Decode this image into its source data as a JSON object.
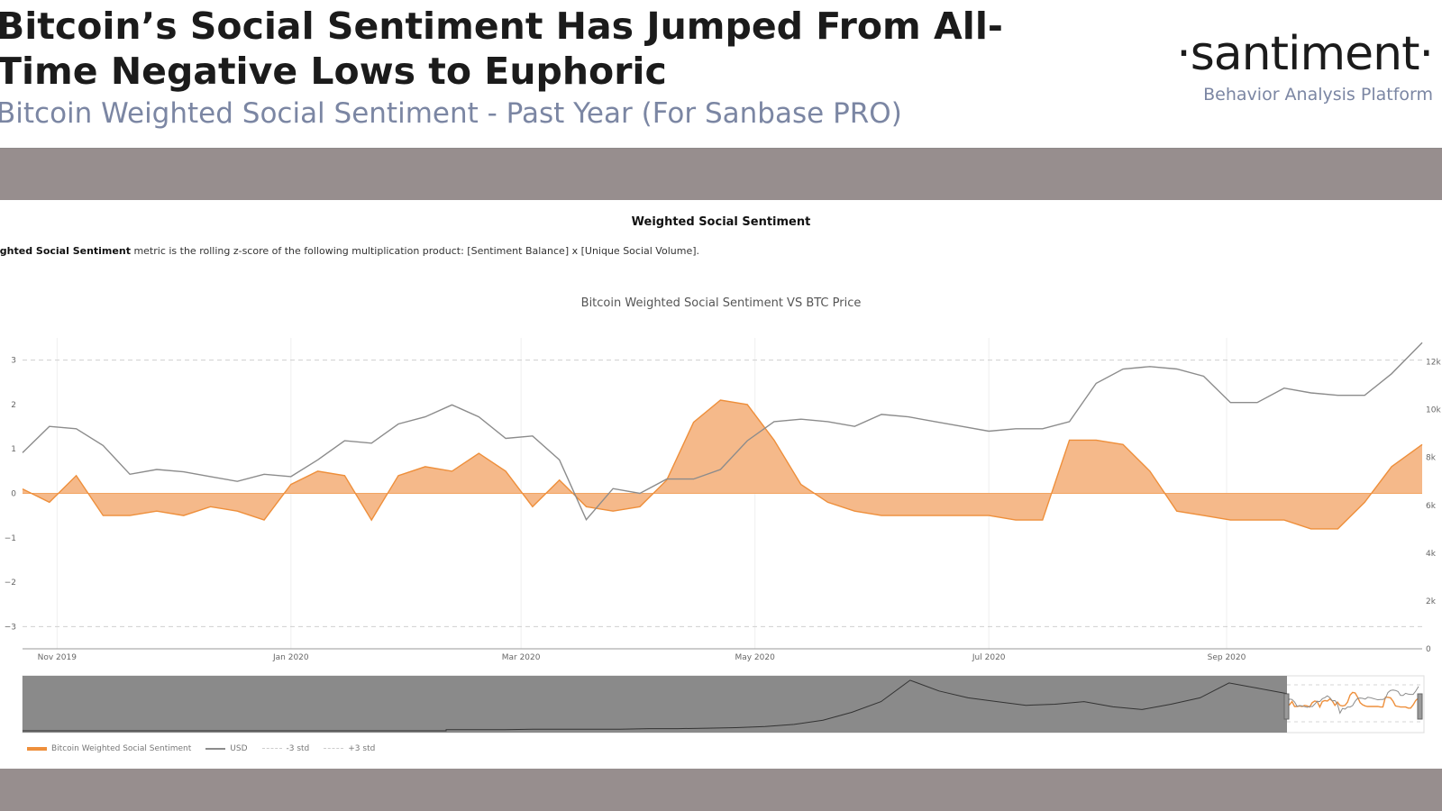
{
  "header": {
    "headline": "Bitcoin’s Social Sentiment Has Jumped From All-Time Negative Lows to Euphoric",
    "subtitle": "Bitcoin Weighted Social Sentiment - Past Year (For Sanbase PRO)"
  },
  "logo": {
    "wordmark": "·santiment·",
    "tagline": "Behavior Analysis Platform"
  },
  "section": {
    "title": "Weighted Social Sentiment",
    "description_bold": "ighted Social Sentiment",
    "description_rest": " metric is the rolling z-score of the following multiplication product: [Sentiment Balance] x [Unique Social Volume]."
  },
  "colors": {
    "sentiment_fill": "#f5b98a",
    "sentiment_line": "#ee8f3b",
    "price_line": "#8c8c8c",
    "band": "#978e8e",
    "navigator_shade": "#8a8a8a"
  },
  "chart_data": {
    "type": "area",
    "title": "Bitcoin Weighted Social Sentiment VS BTC Price",
    "x_ticks": [
      "Nov 2019",
      "Jan 2020",
      "Mar 2020",
      "May 2020",
      "Jul 2020",
      "Sep 2020"
    ],
    "x_range": [
      "2019-10-23",
      "2020-10-22"
    ],
    "y_left": {
      "ticks": [
        "3",
        "2",
        "1",
        "0",
        "−1",
        "−2",
        "−3"
      ],
      "range": [
        -3.5,
        3.5
      ]
    },
    "y_right": {
      "ticks": [
        "12k",
        "10k",
        "8k",
        "6k",
        "4k",
        "2k",
        "0"
      ],
      "range": [
        0,
        13000
      ]
    },
    "reference_lines": [
      {
        "name": "-3 std",
        "y": -3
      },
      {
        "name": "+3 std",
        "y": 3
      }
    ],
    "series": [
      {
        "name": "Bitcoin Weighted Social Sentiment",
        "axis": "left",
        "x": [
          "2019-10-23",
          "2019-10-30",
          "2019-11-06",
          "2019-11-13",
          "2019-11-20",
          "2019-11-27",
          "2019-12-04",
          "2019-12-11",
          "2019-12-18",
          "2019-12-25",
          "2020-01-01",
          "2020-01-08",
          "2020-01-15",
          "2020-01-22",
          "2020-01-29",
          "2020-02-05",
          "2020-02-12",
          "2020-02-19",
          "2020-02-26",
          "2020-03-04",
          "2020-03-11",
          "2020-03-18",
          "2020-03-25",
          "2020-04-01",
          "2020-04-08",
          "2020-04-15",
          "2020-04-22",
          "2020-04-29",
          "2020-05-06",
          "2020-05-13",
          "2020-05-20",
          "2020-05-27",
          "2020-06-03",
          "2020-06-10",
          "2020-06-17",
          "2020-06-24",
          "2020-07-01",
          "2020-07-08",
          "2020-07-15",
          "2020-07-22",
          "2020-07-29",
          "2020-08-05",
          "2020-08-12",
          "2020-08-19",
          "2020-08-26",
          "2020-09-02",
          "2020-09-09",
          "2020-09-16",
          "2020-09-23",
          "2020-09-30",
          "2020-10-07",
          "2020-10-14",
          "2020-10-22"
        ],
        "values": [
          0.1,
          -0.2,
          0.4,
          -0.5,
          -0.5,
          -0.4,
          -0.5,
          -0.3,
          -0.4,
          -0.6,
          0.2,
          0.5,
          0.4,
          -0.6,
          0.4,
          0.6,
          0.5,
          0.9,
          0.5,
          -0.3,
          0.3,
          -0.3,
          -0.4,
          -0.3,
          0.3,
          1.6,
          2.1,
          2.0,
          1.2,
          0.2,
          -0.2,
          -0.4,
          -0.5,
          -0.5,
          -0.5,
          -0.5,
          -0.5,
          -0.6,
          -0.6,
          1.2,
          1.2,
          1.1,
          0.5,
          -0.4,
          -0.5,
          -0.6,
          -0.6,
          -0.6,
          -0.8,
          -0.8,
          -0.2,
          0.6,
          1.1
        ]
      },
      {
        "name": "USD",
        "axis": "right",
        "x": [
          "2019-10-23",
          "2019-10-30",
          "2019-11-06",
          "2019-11-13",
          "2019-11-20",
          "2019-11-27",
          "2019-12-04",
          "2019-12-11",
          "2019-12-18",
          "2019-12-25",
          "2020-01-01",
          "2020-01-08",
          "2020-01-15",
          "2020-01-22",
          "2020-01-29",
          "2020-02-05",
          "2020-02-12",
          "2020-02-19",
          "2020-02-26",
          "2020-03-04",
          "2020-03-11",
          "2020-03-18",
          "2020-03-25",
          "2020-04-01",
          "2020-04-08",
          "2020-04-15",
          "2020-04-22",
          "2020-04-29",
          "2020-05-06",
          "2020-05-13",
          "2020-05-20",
          "2020-05-27",
          "2020-06-03",
          "2020-06-10",
          "2020-06-17",
          "2020-06-24",
          "2020-07-01",
          "2020-07-08",
          "2020-07-15",
          "2020-07-22",
          "2020-07-29",
          "2020-08-05",
          "2020-08-12",
          "2020-08-19",
          "2020-08-26",
          "2020-09-02",
          "2020-09-09",
          "2020-09-16",
          "2020-09-23",
          "2020-09-30",
          "2020-10-07",
          "2020-10-14",
          "2020-10-22"
        ],
        "values": [
          8200,
          9300,
          9200,
          8500,
          7300,
          7500,
          7400,
          7200,
          7000,
          7300,
          7200,
          7900,
          8700,
          8600,
          9400,
          9700,
          10200,
          9700,
          8800,
          8900,
          7900,
          5400,
          6700,
          6500,
          7100,
          7100,
          7500,
          8700,
          9500,
          9600,
          9500,
          9300,
          9800,
          9700,
          9500,
          9300,
          9100,
          9200,
          9200,
          9500,
          11100,
          11700,
          11800,
          11700,
          11400,
          10300,
          10300,
          10900,
          10700,
          10600,
          10600,
          11500,
          12800
        ]
      }
    ],
    "navigator": {
      "description_x_range": [
        "2013-01",
        "2020-10"
      ]
    },
    "legend": [
      {
        "name": "Bitcoin Weighted Social Sentiment",
        "color": "#ee8f3b"
      },
      {
        "name": "USD",
        "color": "#8c8c8c"
      },
      {
        "name": "-3 std",
        "color": "#cccccc"
      },
      {
        "name": "+3 std",
        "color": "#cccccc"
      }
    ]
  }
}
